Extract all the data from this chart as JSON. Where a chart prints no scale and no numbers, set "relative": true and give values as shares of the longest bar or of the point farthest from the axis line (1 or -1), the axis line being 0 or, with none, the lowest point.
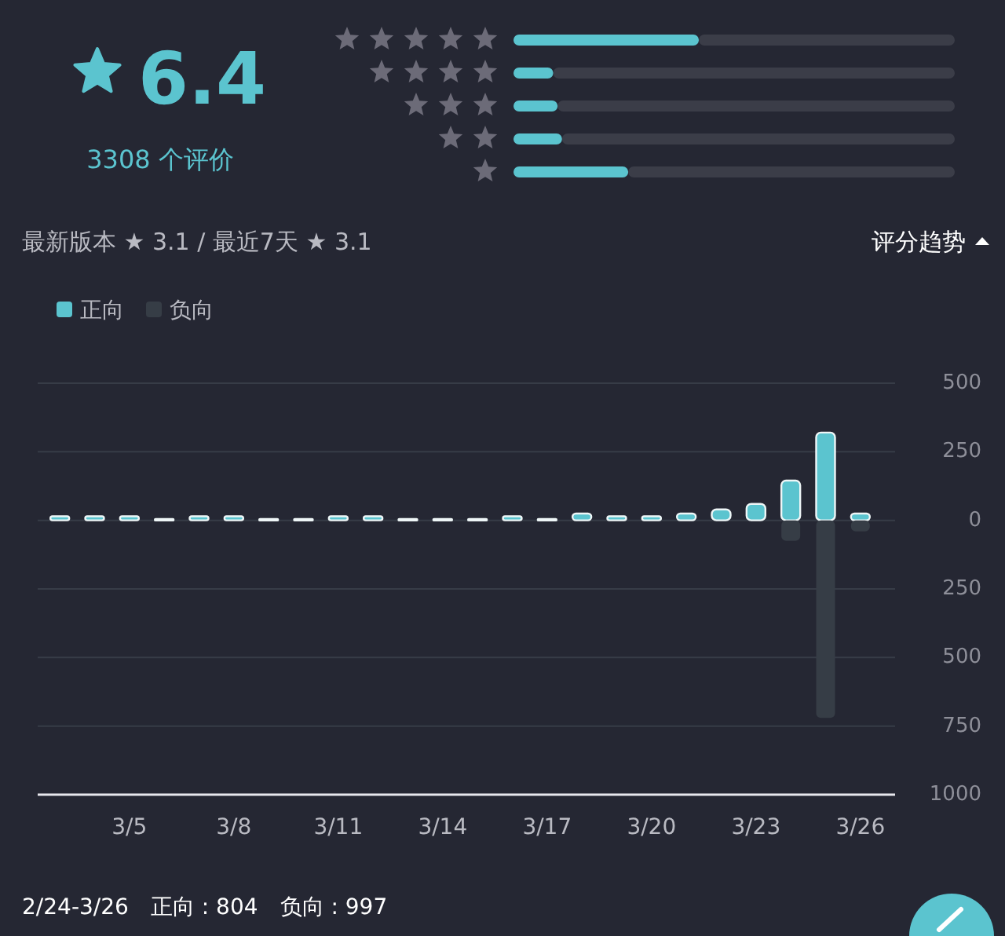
{
  "chart_data": [
    {
      "type": "other",
      "title": "6.4",
      "annotations": [
        "3308 个评价"
      ],
      "color": "#5bc4cf"
    },
    {
      "type": "bar",
      "orientation": "horizontal",
      "stacked": true,
      "relative": true,
      "categories": [
        null,
        null,
        null,
        null,
        null
      ],
      "series": [
        {
          "color": "#5bc4cf",
          "values": [
            0.42,
            0.09,
            0.1,
            0.11,
            0.26
          ]
        },
        {
          "color": "#3b3d48",
          "values": [
            0.58,
            0.91,
            0.9,
            0.89,
            0.74
          ]
        }
      ]
    },
    {
      "type": "bar",
      "stacked": true,
      "title": "评分趋势",
      "subtitle": "最新版本 ★ 3.1 / 最近7天 ★ 3.1",
      "categories": [
        null,
        null,
        "3/5",
        null,
        null,
        "3/8",
        null,
        null,
        "3/11",
        null,
        null,
        "3/14",
        null,
        null,
        "3/17",
        null,
        null,
        "3/20",
        null,
        null,
        "3/23",
        null,
        null,
        "3/26"
      ],
      "series": [
        {
          "name": "正向",
          "color": "#5bc4cf",
          "values": [
            15,
            15,
            15,
            5,
            15,
            15,
            5,
            5,
            15,
            15,
            5,
            5,
            5,
            15,
            5,
            25,
            15,
            15,
            25,
            40,
            60,
            145,
            320,
            25
          ]
        },
        {
          "name": "负向",
          "color": "#363d46",
          "values": [
            null,
            null,
            null,
            null,
            null,
            null,
            null,
            null,
            null,
            null,
            null,
            null,
            null,
            null,
            null,
            null,
            null,
            null,
            null,
            null,
            null,
            -75,
            -720,
            -40
          ]
        }
      ],
      "ylim": [
        -1000,
        500
      ],
      "yticks": [
        500,
        250,
        0,
        {
          "value": -250,
          "label": "250"
        },
        {
          "value": -500,
          "label": "500"
        },
        {
          "value": -750,
          "label": "750"
        },
        {
          "value": -1000,
          "label": "1000"
        }
      ],
      "grid": "y",
      "legend": "top left",
      "annotations": [
        "2/24-3/26　正向 : 804　负向 : 997"
      ]
    }
  ]
}
